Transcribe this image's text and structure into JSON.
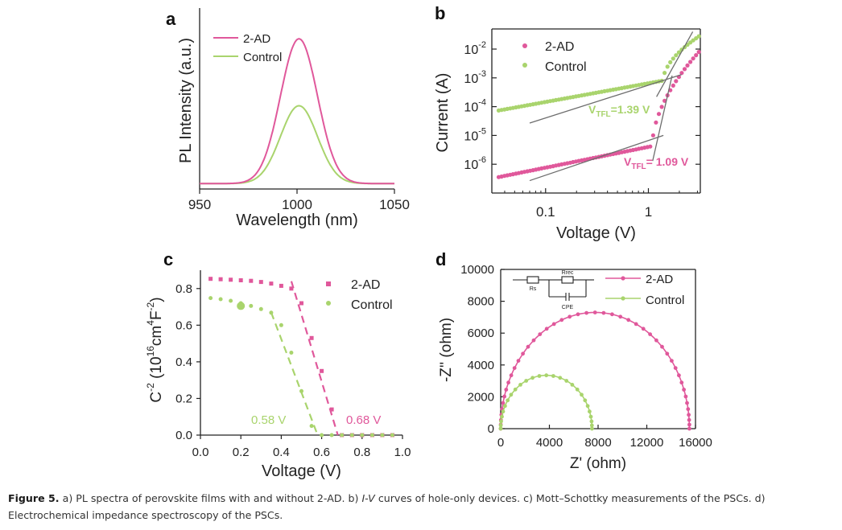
{
  "colors": {
    "ad": "#e0589b",
    "control": "#a9d46d",
    "fit": "#6d6d6d",
    "axis": "#222222"
  },
  "chart_data": [
    {
      "panel": "a",
      "type": "line",
      "xlabel": "Wavelength (nm)",
      "ylabel": "PL Intensity (a.u.)",
      "xlim": [
        950,
        1050
      ],
      "ylim": [
        0,
        1
      ],
      "xticks": [
        "950",
        "1000",
        "1050"
      ],
      "legend": [
        "2-AD",
        "Control"
      ],
      "series": [
        {
          "name": "2-AD",
          "peak_nm": 1001,
          "width_nm": 9.5,
          "baseline": 0.03,
          "amplitude": 0.8
        },
        {
          "name": "Control",
          "peak_nm": 1001,
          "width_nm": 9.5,
          "baseline": 0.03,
          "amplitude": 0.43
        }
      ]
    },
    {
      "panel": "b",
      "type": "scatter",
      "xscale": "log",
      "yscale": "log",
      "xlabel": "Voltage (V)",
      "ylabel": "Current (A)",
      "xlim": [
        0.03,
        3.2
      ],
      "ylim": [
        1e-07,
        0.05
      ],
      "xticks": [
        "0.1",
        "1"
      ],
      "yticks": [
        {
          "base": "10",
          "exp": "-6"
        },
        {
          "base": "10",
          "exp": "-5"
        },
        {
          "base": "10",
          "exp": "-4"
        },
        {
          "base": "10",
          "exp": "-3"
        },
        {
          "base": "10",
          "exp": "-2"
        }
      ],
      "legend": [
        "2-AD",
        "Control"
      ],
      "annotations": [
        {
          "label": "V",
          "sub": "TFL",
          "value": "=1.39 V",
          "series": "Control"
        },
        {
          "label": "V",
          "sub": "TFL",
          "value": "= 1.09 V",
          "series": "2-AD"
        }
      ],
      "series": [
        {
          "name": "2-AD",
          "ohmic": {
            "a": 4e-06,
            "b": 0.72
          },
          "v_tfl": 1.09,
          "i_end": 0.009
        },
        {
          "name": "Control",
          "ohmic": {
            "a": 0.00065,
            "b": 0.65
          },
          "v_tfl": 1.39,
          "i_end": 0.03
        }
      ]
    },
    {
      "panel": "c",
      "type": "scatter",
      "xlabel": "Voltage (V)",
      "ylabel": {
        "base": "C",
        "exp1": "-2",
        "open": " (10",
        "exp2": "16",
        "mid": "cm",
        "exp3": "4",
        "tail": "F",
        "exp4": "-2",
        "close": ")"
      },
      "xlim": [
        0.0,
        1.0
      ],
      "ylim": [
        0.0,
        0.9
      ],
      "xticks": [
        "0.0",
        "0.2",
        "0.4",
        "0.6",
        "0.8",
        "1.0"
      ],
      "yticks": [
        "0.0",
        "0.2",
        "0.4",
        "0.6",
        "0.8"
      ],
      "legend": [
        "2-AD",
        "Control"
      ],
      "annotations": [
        {
          "text": "0.58 V",
          "series": "Control"
        },
        {
          "text": "0.68 V",
          "series": "2-AD"
        }
      ],
      "series": [
        {
          "name": "2-AD",
          "plateau": 0.855,
          "v_knee": 0.5,
          "vbi": 0.68,
          "x": [
            0.05,
            0.1,
            0.15,
            0.2,
            0.25,
            0.3,
            0.35,
            0.4,
            0.45,
            0.5,
            0.55,
            0.6,
            0.65,
            0.7,
            0.75,
            0.8,
            0.85,
            0.9,
            0.95
          ],
          "y": [
            0.853,
            0.851,
            0.848,
            0.845,
            0.842,
            0.836,
            0.827,
            0.815,
            0.8,
            0.72,
            0.53,
            0.35,
            0.14,
            0.0,
            0.0,
            0.0,
            0.0,
            0.0,
            0.0
          ]
        },
        {
          "name": "Control",
          "plateau": 0.75,
          "v_knee": 0.42,
          "vbi": 0.58,
          "x": [
            0.05,
            0.1,
            0.15,
            0.2,
            0.25,
            0.3,
            0.35,
            0.4,
            0.45,
            0.5,
            0.55,
            0.6,
            0.65,
            0.7,
            0.75,
            0.8,
            0.85,
            0.9,
            0.95
          ],
          "y": [
            0.748,
            0.742,
            0.733,
            0.72,
            0.705,
            0.688,
            0.668,
            0.6,
            0.45,
            0.24,
            0.05,
            0.0,
            0.0,
            0.0,
            0.0,
            0.0,
            0.0,
            0.0,
            0.0
          ]
        }
      ]
    },
    {
      "panel": "d",
      "type": "line",
      "xlabel": "Z' (ohm)",
      "ylabel": "-Z'' (ohm)",
      "xlim": [
        0,
        16000
      ],
      "ylim": [
        0,
        10000
      ],
      "xticks": [
        "0",
        "4000",
        "8000",
        "12000",
        "16000"
      ],
      "yticks": [
        "0",
        "2000",
        "4000",
        "6000",
        "8000",
        "10000"
      ],
      "legend": [
        "2-AD",
        "Control"
      ],
      "circuit": {
        "r1": "Rs",
        "r2": "Rrec",
        "c": "CPE"
      },
      "series": [
        {
          "name": "2-AD",
          "x_start": 0,
          "x_end": 15500,
          "peak": 7300
        },
        {
          "name": "Control",
          "x_start": 0,
          "x_end": 7500,
          "peak": 3350
        }
      ]
    }
  ],
  "panel_labels": [
    "a",
    "b",
    "c",
    "d"
  ],
  "caption": {
    "lead": "Figure 5.",
    "p1": " a) PL spectra of perovskite films with and without 2-AD. b) ",
    "iv": "I-V",
    "p2": " curves of hole-only devices. c) Mott–Schottky measurements of the PSCs. d) Electrochemical impedance spectroscopy of the PSCs."
  }
}
